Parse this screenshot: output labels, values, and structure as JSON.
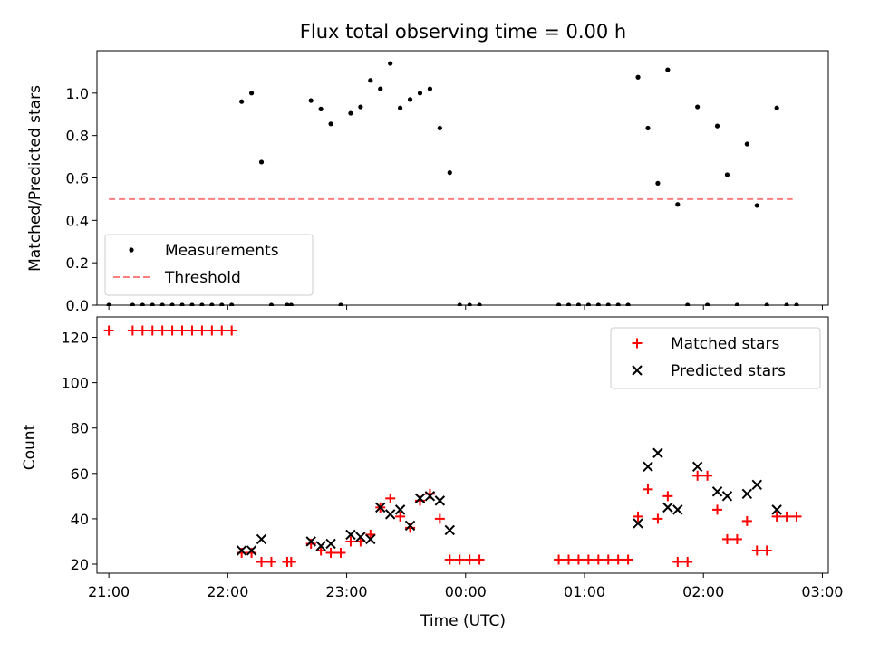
{
  "chart_data": [
    {
      "type": "scatter",
      "title": "Flux total observing time = 0.00 h",
      "xlabel": "",
      "ylabel": "Matched/Predicted stars",
      "xlim": [
        "20:54",
        "03:03"
      ],
      "ylim": [
        0,
        1.2
      ],
      "x_tick_labels_visible": false,
      "yticks": [
        0.0,
        0.2,
        0.4,
        0.6,
        0.8,
        1.0
      ],
      "ytick_labels": [
        "0.0",
        "0.2",
        "0.4",
        "0.6",
        "0.8",
        "1.0"
      ],
      "legend": {
        "position": "lower-left",
        "entries": [
          "Measurements",
          "Threshold"
        ]
      },
      "threshold": {
        "name": "Threshold",
        "value": 0.5,
        "x_start": "21:00",
        "x_end": "02:45",
        "color": "#ff7f7f",
        "style": "dashed"
      },
      "series": [
        {
          "name": "Measurements",
          "color": "#000000",
          "marker": "dot",
          "points": [
            [
              "21:00",
              0
            ],
            [
              "21:12",
              0
            ],
            [
              "21:17",
              0
            ],
            [
              "21:22",
              0
            ],
            [
              "21:27",
              0
            ],
            [
              "21:32",
              0
            ],
            [
              "21:37",
              0
            ],
            [
              "21:42",
              0
            ],
            [
              "21:47",
              0
            ],
            [
              "21:52",
              0
            ],
            [
              "21:57",
              0
            ],
            [
              "22:02",
              0
            ],
            [
              "22:07",
              0.96
            ],
            [
              "22:12",
              1.0
            ],
            [
              "22:17",
              0.675
            ],
            [
              "22:22",
              0
            ],
            [
              "22:30",
              0
            ],
            [
              "22:32",
              0
            ],
            [
              "22:42",
              0.965
            ],
            [
              "22:47",
              0.925
            ],
            [
              "22:52",
              0.855
            ],
            [
              "22:57",
              0
            ],
            [
              "23:02",
              0.905
            ],
            [
              "23:07",
              0.935
            ],
            [
              "23:12",
              1.06
            ],
            [
              "23:17",
              1.02
            ],
            [
              "23:22",
              1.14
            ],
            [
              "23:27",
              0.93
            ],
            [
              "23:32",
              0.97
            ],
            [
              "23:37",
              1.0
            ],
            [
              "23:42",
              1.02
            ],
            [
              "23:47",
              0.835
            ],
            [
              "23:52",
              0.625
            ],
            [
              "23:57",
              0
            ],
            [
              "00:02",
              0
            ],
            [
              "00:07",
              0
            ],
            [
              "00:47",
              0
            ],
            [
              "00:52",
              0
            ],
            [
              "00:57",
              0
            ],
            [
              "01:02",
              0
            ],
            [
              "01:07",
              0
            ],
            [
              "01:12",
              0
            ],
            [
              "01:17",
              0
            ],
            [
              "01:22",
              0
            ],
            [
              "01:27",
              1.075
            ],
            [
              "01:32",
              0.835
            ],
            [
              "01:37",
              0.575
            ],
            [
              "01:42",
              1.11
            ],
            [
              "01:47",
              0.475
            ],
            [
              "01:52",
              0
            ],
            [
              "01:57",
              0.935
            ],
            [
              "02:02",
              0
            ],
            [
              "02:07",
              0.845
            ],
            [
              "02:12",
              0.615
            ],
            [
              "02:17",
              0
            ],
            [
              "02:22",
              0.76
            ],
            [
              "02:27",
              0.47
            ],
            [
              "02:32",
              0
            ],
            [
              "02:37",
              0.93
            ],
            [
              "02:42",
              0
            ],
            [
              "02:47",
              0
            ]
          ]
        }
      ]
    },
    {
      "type": "scatter",
      "title": "",
      "xlabel": "Time (UTC)",
      "ylabel": "Count",
      "xlim": [
        "20:54",
        "03:03"
      ],
      "ylim": [
        16,
        129
      ],
      "xticks": [
        "21:00",
        "22:00",
        "23:00",
        "00:00",
        "01:00",
        "02:00",
        "03:00"
      ],
      "yticks": [
        20,
        40,
        60,
        80,
        100,
        120
      ],
      "legend": {
        "position": "upper-right",
        "entries": [
          "Matched stars",
          "Predicted stars"
        ]
      },
      "series": [
        {
          "name": "Matched stars",
          "color": "#ff0000",
          "marker": "plus",
          "points": [
            [
              "21:00",
              123
            ],
            [
              "21:12",
              123
            ],
            [
              "21:17",
              123
            ],
            [
              "21:22",
              123
            ],
            [
              "21:27",
              123
            ],
            [
              "21:32",
              123
            ],
            [
              "21:37",
              123
            ],
            [
              "21:42",
              123
            ],
            [
              "21:47",
              123
            ],
            [
              "21:52",
              123
            ],
            [
              "21:57",
              123
            ],
            [
              "22:02",
              123
            ],
            [
              "22:07",
              25
            ],
            [
              "22:12",
              25
            ],
            [
              "22:17",
              21
            ],
            [
              "22:22",
              21
            ],
            [
              "22:30",
              21
            ],
            [
              "22:32",
              21
            ],
            [
              "22:42",
              29
            ],
            [
              "22:47",
              26
            ],
            [
              "22:52",
              25
            ],
            [
              "22:57",
              25
            ],
            [
              "23:02",
              30
            ],
            [
              "23:07",
              30
            ],
            [
              "23:12",
              33
            ],
            [
              "23:17",
              45
            ],
            [
              "23:22",
              49
            ],
            [
              "23:27",
              41
            ],
            [
              "23:32",
              36
            ],
            [
              "23:37",
              48
            ],
            [
              "23:42",
              51
            ],
            [
              "23:47",
              40
            ],
            [
              "23:52",
              22
            ],
            [
              "23:57",
              22
            ],
            [
              "00:02",
              22
            ],
            [
              "00:07",
              22
            ],
            [
              "00:47",
              22
            ],
            [
              "00:52",
              22
            ],
            [
              "00:57",
              22
            ],
            [
              "01:02",
              22
            ],
            [
              "01:07",
              22
            ],
            [
              "01:12",
              22
            ],
            [
              "01:17",
              22
            ],
            [
              "01:22",
              22
            ],
            [
              "01:27",
              41
            ],
            [
              "01:32",
              53
            ],
            [
              "01:37",
              40
            ],
            [
              "01:42",
              50
            ],
            [
              "01:47",
              21
            ],
            [
              "01:52",
              21
            ],
            [
              "01:57",
              59
            ],
            [
              "02:02",
              59
            ],
            [
              "02:07",
              44
            ],
            [
              "02:12",
              31
            ],
            [
              "02:17",
              31
            ],
            [
              "02:22",
              39
            ],
            [
              "02:27",
              26
            ],
            [
              "02:32",
              26
            ],
            [
              "02:37",
              41
            ],
            [
              "02:42",
              41
            ],
            [
              "02:47",
              41
            ]
          ]
        },
        {
          "name": "Predicted stars",
          "color": "#000000",
          "marker": "x",
          "points": [
            [
              "22:07",
              26
            ],
            [
              "22:12",
              26
            ],
            [
              "22:17",
              31
            ],
            [
              "22:42",
              30
            ],
            [
              "22:47",
              28
            ],
            [
              "22:52",
              29
            ],
            [
              "23:02",
              33
            ],
            [
              "23:07",
              32
            ],
            [
              "23:12",
              31
            ],
            [
              "23:17",
              45
            ],
            [
              "23:22",
              42
            ],
            [
              "23:27",
              44
            ],
            [
              "23:32",
              37
            ],
            [
              "23:37",
              49
            ],
            [
              "23:42",
              50
            ],
            [
              "23:47",
              48
            ],
            [
              "23:52",
              35
            ],
            [
              "01:27",
              38
            ],
            [
              "01:32",
              63
            ],
            [
              "01:37",
              69
            ],
            [
              "01:42",
              45
            ],
            [
              "01:47",
              44
            ],
            [
              "01:57",
              63
            ],
            [
              "02:07",
              52
            ],
            [
              "02:12",
              50
            ],
            [
              "02:22",
              51
            ],
            [
              "02:27",
              55
            ],
            [
              "02:37",
              44
            ]
          ]
        }
      ]
    }
  ]
}
